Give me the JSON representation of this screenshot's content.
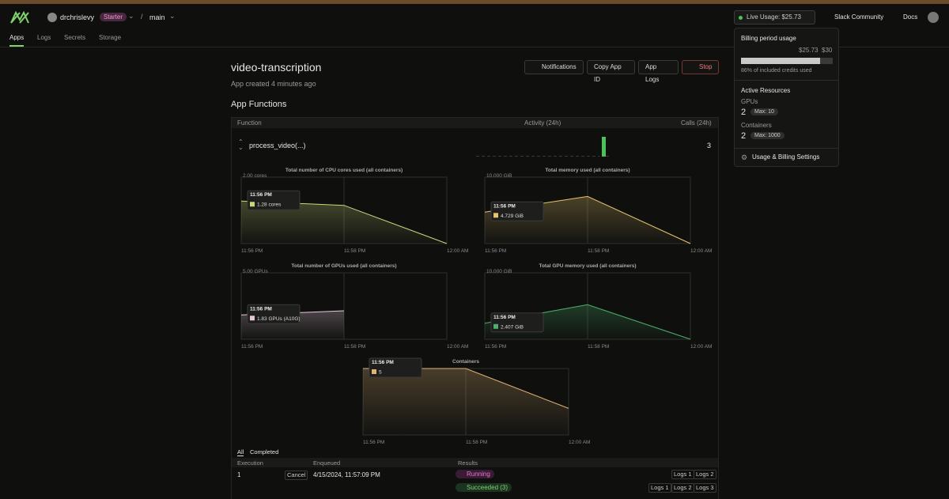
{
  "nav": {
    "user": "drchrislevy",
    "plan": "Starter",
    "branch": "main",
    "live_usage": "Live Usage: $25.73",
    "links": [
      "Slack Community",
      "Docs"
    ],
    "tabs": [
      "Apps",
      "Logs",
      "Secrets",
      "Storage"
    ]
  },
  "app": {
    "title": "video-transcription",
    "subtitle": "App created 4 minutes ago",
    "buttons": [
      "Notifications",
      "Copy App ID",
      "App Logs",
      "Stop"
    ],
    "section": "App Functions",
    "table_header": [
      "Function",
      "Activity (24h)",
      "Calls (24h)"
    ],
    "function": {
      "name": "process_video(...)",
      "calls": 3
    }
  },
  "charts": [
    {
      "type": "area",
      "title": "Total number of CPU cores used (all containers)",
      "categories": [
        "11:56 PM",
        "11:58 PM",
        "12:00 AM"
      ],
      "values": [
        1.28,
        1.15,
        0
      ],
      "color": "#c9d67a",
      "ylim": [
        0,
        2
      ],
      "yticks": [
        {
          "value": 2,
          "label": "2.00 cores"
        }
      ],
      "tooltip": {
        "time": "11:56 PM",
        "label": "1.28 cores"
      }
    },
    {
      "type": "area",
      "title": "Total memory used (all containers)",
      "categories": [
        "11:56 PM",
        "11:58 PM",
        "12:00 AM"
      ],
      "values": [
        4.729,
        7.1,
        0
      ],
      "color": "#e6c46e",
      "ylim": [
        0,
        10
      ],
      "yticks": [
        {
          "value": 10,
          "label": "10.000 GiB"
        }
      ],
      "tooltip": {
        "time": "11:56 PM",
        "label": "4.729 GiB"
      }
    },
    {
      "type": "area",
      "title": "Total number of GPUs used (all containers)",
      "categories": [
        "11:56 PM",
        "11:58 PM",
        "12:00 AM"
      ],
      "values": [
        1.83,
        2.14,
        null
      ],
      "color": "#e4c8d8",
      "ylim": [
        0,
        5
      ],
      "yticks": [
        {
          "value": 5,
          "label": "5.00 GPUs"
        }
      ],
      "tooltip": {
        "time": "11:56 PM",
        "label": "1.83 GPUs (A10G)"
      }
    },
    {
      "type": "area",
      "title": "Total GPU memory used (all containers)",
      "categories": [
        "11:56 PM",
        "11:58 PM",
        "12:00 AM"
      ],
      "values": [
        2.407,
        5.2,
        0
      ],
      "color": "#4caf6a",
      "ylim": [
        0,
        10
      ],
      "yticks": [
        {
          "value": 10,
          "label": "10.000 GiB"
        }
      ],
      "tooltip": {
        "time": "11:56 PM",
        "label": "2.407 GiB"
      }
    },
    {
      "type": "area",
      "title": "Containers",
      "categories": [
        "11:56 PM",
        "11:58 PM",
        "12:00 AM"
      ],
      "values": [
        5,
        5,
        2
      ],
      "color": "#e0b274",
      "ylim": [
        0,
        5
      ],
      "yticks": [],
      "tooltip": {
        "time": "11:56 PM",
        "label": "5"
      }
    }
  ],
  "runs": {
    "tabs": [
      "All",
      "Completed"
    ],
    "header": [
      "Execution",
      "Enqueued",
      "Results"
    ],
    "rows": [
      {
        "execution": 1,
        "action": "Cancel",
        "enqueued": "4/15/2024, 11:57:09 PM",
        "status": "Running",
        "logs": [
          "Logs 1",
          "Logs 2"
        ]
      },
      {
        "status": "Succeeded (3)",
        "logs": [
          "Logs 1",
          "Logs 2",
          "Logs 3"
        ]
      }
    ]
  },
  "billing": {
    "title": "Billing period usage",
    "used": "$25.73",
    "limit": "$30",
    "percent_used": 86,
    "note": "86% of included credits used",
    "resources_title": "Active Resources",
    "resources": [
      {
        "label": "GPUs",
        "count": 2,
        "max": "Max: 10"
      },
      {
        "label": "Containers",
        "count": 2,
        "max": "Max: 1000"
      }
    ],
    "settings": "Usage & Billing Settings"
  }
}
